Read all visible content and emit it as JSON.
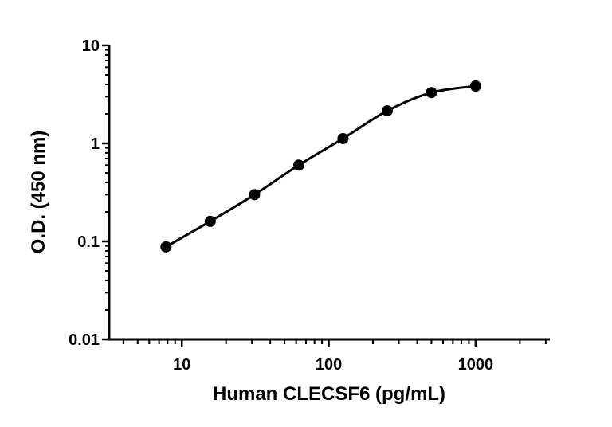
{
  "chart_data": {
    "type": "scatter",
    "title": "",
    "xlabel": "Human CLECSF6 (pg/mL)",
    "ylabel": "O.D. (450 nm)",
    "x_scale": "log",
    "y_scale": "log",
    "xlim": [
      3.2,
      3200
    ],
    "ylim": [
      0.01,
      10
    ],
    "x_ticks": [
      10,
      100,
      1000
    ],
    "x_tick_labels": [
      "10",
      "100",
      "1000"
    ],
    "y_ticks": [
      0.01,
      0.1,
      1,
      10
    ],
    "y_tick_labels": [
      "0.01",
      "0.1",
      "1",
      "10"
    ],
    "grid": false,
    "legend": "none",
    "fit_curve": true,
    "color": "#000000",
    "series": [
      {
        "x": [
          7.8,
          15.6,
          31.25,
          62.5,
          125,
          250,
          500,
          1000
        ],
        "y": [
          0.088,
          0.16,
          0.3,
          0.6,
          1.12,
          2.15,
          3.3,
          3.85
        ]
      }
    ]
  }
}
